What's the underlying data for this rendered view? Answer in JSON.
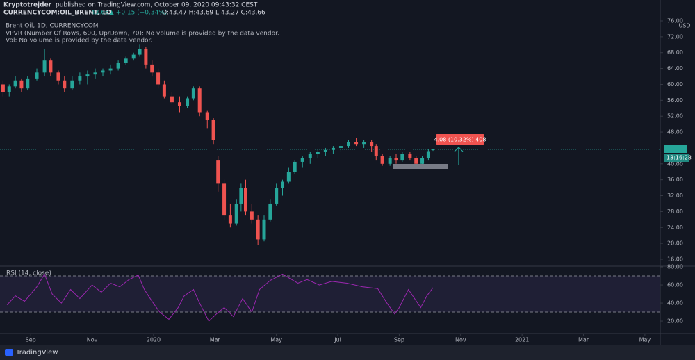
{
  "header": {
    "author": "Kryptotrejder",
    "published": "published on TradingView.com, October 09, 2020 09:43:32 CEST",
    "symbol": "CURRENCYCOM:OIL_BRENT, 1D",
    "last": "43.66",
    "change": "▲ +0.15 (+0.34%)",
    "ohlc": "O:43.47 H:43.69 L:43.27 C:43.66"
  },
  "legend": {
    "title": "Brent Oil, 1D, CURRENCYCOM",
    "vpvr": "VPVR (Number Of Rows, 600, Up/Down, 70): No volume is provided by the data vendor.",
    "vol": "Vol: No volume is provided by the data vendor."
  },
  "footer": {
    "brand": "TradingView"
  },
  "chart_data": [
    {
      "type": "candlestick",
      "currency": "USD",
      "up_color": "#26a69a",
      "down_color": "#ef5350",
      "xlim": [
        -1.0,
        20.5
      ],
      "ylim": [
        14.25,
        81.25
      ],
      "xticks": [
        {
          "value": 0,
          "label": "Sep"
        },
        {
          "value": 2,
          "label": "Nov"
        },
        {
          "value": 4,
          "label": "2020"
        },
        {
          "value": 6,
          "label": "Mar"
        },
        {
          "value": 8,
          "label": "May"
        },
        {
          "value": 10,
          "label": "Jul"
        },
        {
          "value": 12,
          "label": "Sep"
        },
        {
          "value": 14,
          "label": "Nov"
        },
        {
          "value": 16,
          "label": "2021"
        },
        {
          "value": 18,
          "label": "Mar"
        },
        {
          "value": 20,
          "label": "May"
        }
      ],
      "yticks": [
        {
          "value": 76,
          "label": "76.00"
        },
        {
          "value": 72,
          "label": "72.00"
        },
        {
          "value": 68,
          "label": "68.00"
        },
        {
          "value": 64,
          "label": "64.00"
        },
        {
          "value": 60,
          "label": "60.00"
        },
        {
          "value": 56,
          "label": "56.00"
        },
        {
          "value": 52,
          "label": "52.00"
        },
        {
          "value": 48,
          "label": "48.00"
        },
        {
          "value": 40,
          "label": "40.00"
        },
        {
          "value": 36,
          "label": "36.00"
        },
        {
          "value": 32,
          "label": "32.00"
        },
        {
          "value": 28,
          "label": "28.00"
        },
        {
          "value": 24,
          "label": "24.00"
        },
        {
          "value": 20,
          "label": "20.00"
        },
        {
          "value": 16,
          "label": "16.00"
        }
      ],
      "last_price": {
        "value": 43.66,
        "label": "43.66"
      },
      "countdown": "13:16:28",
      "measure_label": "4.08 (10.32%) 408",
      "x": [
        -0.9,
        -0.7,
        -0.5,
        -0.3,
        -0.1,
        0.2,
        0.45,
        0.65,
        0.9,
        1.1,
        1.35,
        1.6,
        1.85,
        2.1,
        2.35,
        2.6,
        2.85,
        3.1,
        3.35,
        3.55,
        3.75,
        3.95,
        4.15,
        4.35,
        4.6,
        4.85,
        5.1,
        5.3,
        5.5,
        5.75,
        5.95,
        6.1,
        6.3,
        6.5,
        6.7,
        6.85,
        7.0,
        7.2,
        7.4,
        7.6,
        7.8,
        8.0,
        8.2,
        8.4,
        8.6,
        8.85,
        9.1,
        9.35,
        9.6,
        9.85,
        10.1,
        10.35,
        10.6,
        10.85,
        11.1,
        11.25,
        11.45,
        11.7,
        11.9,
        12.1,
        12.35,
        12.55,
        12.75,
        12.95,
        13.1
      ],
      "open": [
        60,
        58,
        59.5,
        61,
        59,
        61.5,
        63,
        66,
        63,
        61,
        59,
        61,
        62,
        62.5,
        63,
        63.5,
        64,
        65.5,
        66.5,
        67.5,
        69,
        65,
        63,
        60,
        57,
        55.5,
        54.5,
        56.5,
        59,
        53,
        51,
        41,
        35,
        27,
        25,
        30,
        34,
        28,
        26,
        21,
        26,
        30,
        34,
        35.5,
        38,
        40.5,
        41.5,
        42.5,
        43,
        43.5,
        44,
        44.5,
        45.5,
        45,
        45.5,
        44.5,
        42,
        40,
        41.5,
        41,
        42.5,
        41.5,
        40,
        41.5,
        43.47
      ],
      "high": [
        61,
        60,
        62,
        61.5,
        62,
        64,
        69,
        66.5,
        63.5,
        62,
        62,
        63,
        63.5,
        64,
        64,
        65,
        66,
        67,
        68,
        70,
        69.5,
        66,
        64,
        61,
        58,
        57,
        57,
        59.5,
        59.5,
        53.5,
        51.5,
        42,
        36,
        30,
        31,
        35,
        36,
        30,
        27,
        27,
        31,
        35,
        36,
        39,
        41,
        42,
        43,
        43.5,
        44,
        44.5,
        45,
        46,
        46.5,
        46,
        46,
        45,
        42.5,
        42,
        42.5,
        43,
        43,
        42,
        42,
        43.8,
        43.69
      ],
      "low": [
        57,
        57,
        59,
        58,
        58.5,
        61,
        62,
        62,
        60,
        58,
        58.5,
        60,
        60,
        61.5,
        62,
        62.5,
        63.5,
        65,
        66,
        67,
        64,
        62,
        59,
        56.5,
        55,
        53,
        54,
        56,
        52,
        49,
        45,
        33,
        26,
        24,
        24.5,
        28,
        27,
        25,
        19.5,
        20.5,
        25.5,
        29.5,
        32,
        35,
        37.5,
        39,
        40,
        41.5,
        42,
        42.5,
        43,
        44,
        44.5,
        44,
        43,
        41,
        39.5,
        39.5,
        40,
        40.5,
        41,
        39,
        39.5,
        41,
        43.27
      ],
      "close": [
        58,
        59.5,
        61,
        59,
        61.5,
        63,
        66,
        63,
        61,
        59,
        61,
        62,
        62.5,
        63,
        63.5,
        64,
        65.5,
        66.5,
        67.5,
        69,
        65,
        63,
        60,
        57,
        55.5,
        54.5,
        56.5,
        59,
        53,
        51,
        46,
        35,
        27,
        25,
        30,
        34,
        28,
        26,
        21,
        26,
        30,
        34,
        35.5,
        38,
        40.5,
        41.5,
        42.5,
        43,
        43.5,
        44,
        44.5,
        45.5,
        45,
        45.5,
        44.5,
        42,
        40,
        41.5,
        41,
        42.5,
        41.5,
        40,
        41.5,
        43.2,
        43.66
      ]
    },
    {
      "type": "line",
      "title": "RSI (14, close)",
      "color": "#9c27b0",
      "xlim": [
        -1.0,
        20.5
      ],
      "ylim": [
        6.2,
        80.8
      ],
      "bands": [
        30,
        70
      ],
      "yticks": [
        {
          "value": 80,
          "label": "80.00"
        },
        {
          "value": 60,
          "label": "60.00"
        },
        {
          "value": 40,
          "label": "40.00"
        },
        {
          "value": 20,
          "label": "20.00"
        }
      ],
      "x": [
        -0.77,
        -0.5,
        -0.2,
        0.2,
        0.45,
        0.7,
        1.0,
        1.3,
        1.6,
        2.0,
        2.3,
        2.6,
        2.9,
        3.2,
        3.5,
        3.7,
        3.95,
        4.2,
        4.5,
        4.8,
        5.0,
        5.3,
        5.5,
        5.8,
        6.05,
        6.3,
        6.6,
        6.9,
        7.2,
        7.45,
        7.8,
        8.2,
        8.7,
        9.0,
        9.4,
        9.8,
        10.3,
        10.8,
        11.3,
        11.6,
        11.85,
        12.0,
        12.3,
        12.5,
        12.7,
        12.9,
        13.1
      ],
      "values": [
        38,
        48,
        42,
        58,
        72,
        50,
        40,
        55,
        45,
        60,
        52,
        62,
        58,
        66,
        71,
        55,
        42,
        30,
        22,
        35,
        48,
        55,
        40,
        20,
        28,
        35,
        25,
        45,
        30,
        55,
        65,
        72,
        62,
        66,
        60,
        64,
        62,
        58,
        56,
        40,
        28,
        35,
        55,
        45,
        35,
        48,
        57
      ]
    }
  ]
}
